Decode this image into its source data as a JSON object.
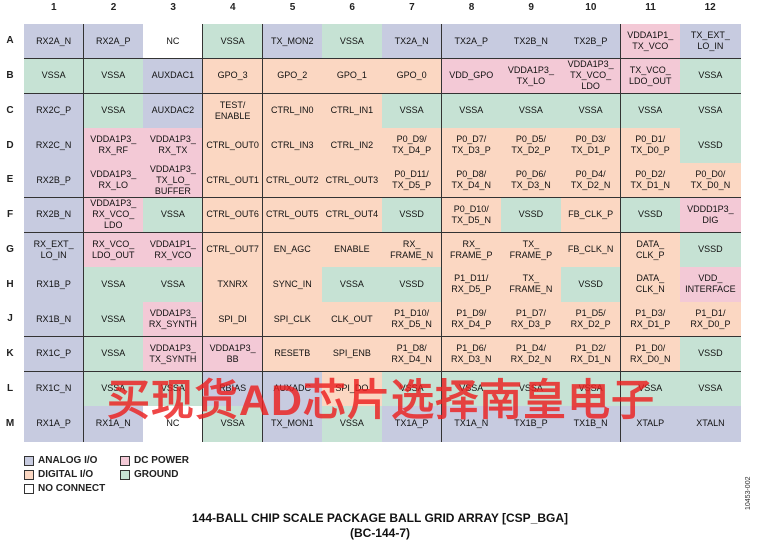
{
  "columns": [
    "1",
    "2",
    "3",
    "4",
    "5",
    "6",
    "7",
    "8",
    "9",
    "10",
    "11",
    "12"
  ],
  "rows": [
    {
      "label": "A",
      "cells": [
        {
          "text": "RX2A_N",
          "type": "A"
        },
        {
          "text": "RX2A_P",
          "type": "A"
        },
        {
          "text": "NC",
          "type": "N"
        },
        {
          "text": "VSSA",
          "type": "G"
        },
        {
          "text": "TX_MON2",
          "type": "A"
        },
        {
          "text": "VSSA",
          "type": "G"
        },
        {
          "text": "TX2A_N",
          "type": "A"
        },
        {
          "text": "TX2A_P",
          "type": "A"
        },
        {
          "text": "TX2B_N",
          "type": "A"
        },
        {
          "text": "TX2B_P",
          "type": "A"
        },
        {
          "text": "VDDA1P1_\nTX_VCO",
          "type": "P"
        },
        {
          "text": "TX_EXT_\nLO_IN",
          "type": "A"
        }
      ]
    },
    {
      "label": "B",
      "cells": [
        {
          "text": "VSSA",
          "type": "G"
        },
        {
          "text": "VSSA",
          "type": "G"
        },
        {
          "text": "AUXDAC1",
          "type": "A"
        },
        {
          "text": "GPO_3",
          "type": "D"
        },
        {
          "text": "GPO_2",
          "type": "D"
        },
        {
          "text": "GPO_1",
          "type": "D"
        },
        {
          "text": "GPO_0",
          "type": "D"
        },
        {
          "text": "VDD_GPO",
          "type": "P"
        },
        {
          "text": "VDDA1P3_\nTX_LO",
          "type": "P"
        },
        {
          "text": "VDDA1P3_\nTX_VCO_\nLDO",
          "type": "P"
        },
        {
          "text": "TX_VCO_\nLDO_OUT",
          "type": "P"
        },
        {
          "text": "VSSA",
          "type": "G"
        }
      ]
    },
    {
      "label": "C",
      "cells": [
        {
          "text": "RX2C_P",
          "type": "A"
        },
        {
          "text": "VSSA",
          "type": "G"
        },
        {
          "text": "AUXDAC2",
          "type": "A"
        },
        {
          "text": "TEST/\nENABLE",
          "type": "D"
        },
        {
          "text": "CTRL_IN0",
          "type": "D"
        },
        {
          "text": "CTRL_IN1",
          "type": "D"
        },
        {
          "text": "VSSA",
          "type": "G"
        },
        {
          "text": "VSSA",
          "type": "G"
        },
        {
          "text": "VSSA",
          "type": "G"
        },
        {
          "text": "VSSA",
          "type": "G"
        },
        {
          "text": "VSSA",
          "type": "G"
        },
        {
          "text": "VSSA",
          "type": "G"
        }
      ]
    },
    {
      "label": "D",
      "cells": [
        {
          "text": "RX2C_N",
          "type": "A"
        },
        {
          "text": "VDDA1P3_\nRX_RF",
          "type": "P"
        },
        {
          "text": "VDDA1P3_\nRX_TX",
          "type": "P"
        },
        {
          "text": "CTRL_OUT0",
          "type": "D"
        },
        {
          "text": "CTRL_IN3",
          "type": "D"
        },
        {
          "text": "CTRL_IN2",
          "type": "D"
        },
        {
          "text": "P0_D9/\nTX_D4_P",
          "type": "D"
        },
        {
          "text": "P0_D7/\nTX_D3_P",
          "type": "D"
        },
        {
          "text": "P0_D5/\nTX_D2_P",
          "type": "D"
        },
        {
          "text": "P0_D3/\nTX_D1_P",
          "type": "D"
        },
        {
          "text": "P0_D1/\nTX_D0_P",
          "type": "D"
        },
        {
          "text": "VSSD",
          "type": "G"
        }
      ]
    },
    {
      "label": "E",
      "cells": [
        {
          "text": "RX2B_P",
          "type": "A"
        },
        {
          "text": "VDDA1P3_\nRX_LO",
          "type": "P"
        },
        {
          "text": "VDDA1P3_\nTX_LO_\nBUFFER",
          "type": "P"
        },
        {
          "text": "CTRL_OUT1",
          "type": "D"
        },
        {
          "text": "CTRL_OUT2",
          "type": "D"
        },
        {
          "text": "CTRL_OUT3",
          "type": "D"
        },
        {
          "text": "P0_D11/\nTX_D5_P",
          "type": "D"
        },
        {
          "text": "P0_D8/\nTX_D4_N",
          "type": "D"
        },
        {
          "text": "P0_D6/\nTX_D3_N",
          "type": "D"
        },
        {
          "text": "P0_D4/\nTX_D2_N",
          "type": "D"
        },
        {
          "text": "P0_D2/\nTX_D1_N",
          "type": "D"
        },
        {
          "text": "P0_D0/\nTX_D0_N",
          "type": "D"
        }
      ]
    },
    {
      "label": "F",
      "cells": [
        {
          "text": "RX2B_N",
          "type": "A"
        },
        {
          "text": "VDDA1P3_\nRX_VCO_\nLDO",
          "type": "P"
        },
        {
          "text": "VSSA",
          "type": "G"
        },
        {
          "text": "CTRL_OUT6",
          "type": "D"
        },
        {
          "text": "CTRL_OUT5",
          "type": "D"
        },
        {
          "text": "CTRL_OUT4",
          "type": "D"
        },
        {
          "text": "VSSD",
          "type": "G"
        },
        {
          "text": "P0_D10/\nTX_D5_N",
          "type": "D"
        },
        {
          "text": "VSSD",
          "type": "G"
        },
        {
          "text": "FB_CLK_P",
          "type": "D"
        },
        {
          "text": "VSSD",
          "type": "G"
        },
        {
          "text": "VDDD1P3_\nDIG",
          "type": "P"
        }
      ]
    },
    {
      "label": "G",
      "cells": [
        {
          "text": "RX_EXT_\nLO_IN",
          "type": "A"
        },
        {
          "text": "RX_VCO_\nLDO_OUT",
          "type": "P"
        },
        {
          "text": "VDDA1P1_\nRX_VCO",
          "type": "P"
        },
        {
          "text": "CTRL_OUT7",
          "type": "D"
        },
        {
          "text": "EN_AGC",
          "type": "D"
        },
        {
          "text": "ENABLE",
          "type": "D"
        },
        {
          "text": "RX_\nFRAME_N",
          "type": "D"
        },
        {
          "text": "RX_\nFRAME_P",
          "type": "D"
        },
        {
          "text": "TX_\nFRAME_P",
          "type": "D"
        },
        {
          "text": "FB_CLK_N",
          "type": "D"
        },
        {
          "text": "DATA_\nCLK_P",
          "type": "D"
        },
        {
          "text": "VSSD",
          "type": "G"
        }
      ]
    },
    {
      "label": "H",
      "cells": [
        {
          "text": "RX1B_P",
          "type": "A"
        },
        {
          "text": "VSSA",
          "type": "G"
        },
        {
          "text": "VSSA",
          "type": "G"
        },
        {
          "text": "TXNRX",
          "type": "D"
        },
        {
          "text": "SYNC_IN",
          "type": "D"
        },
        {
          "text": "VSSA",
          "type": "G"
        },
        {
          "text": "VSSD",
          "type": "G"
        },
        {
          "text": "P1_D11/\nRX_D5_P",
          "type": "D"
        },
        {
          "text": "TX_\nFRAME_N",
          "type": "D"
        },
        {
          "text": "VSSD",
          "type": "G"
        },
        {
          "text": "DATA_\nCLK_N",
          "type": "D"
        },
        {
          "text": "VDD_\nINTERFACE",
          "type": "P"
        }
      ]
    },
    {
      "label": "J",
      "cells": [
        {
          "text": "RX1B_N",
          "type": "A"
        },
        {
          "text": "VSSA",
          "type": "G"
        },
        {
          "text": "VDDA1P3_\nRX_SYNTH",
          "type": "P"
        },
        {
          "text": "SPI_DI",
          "type": "D"
        },
        {
          "text": "SPI_CLK",
          "type": "D"
        },
        {
          "text": "CLK_OUT",
          "type": "D"
        },
        {
          "text": "P1_D10/\nRX_D5_N",
          "type": "D"
        },
        {
          "text": "P1_D9/\nRX_D4_P",
          "type": "D"
        },
        {
          "text": "P1_D7/\nRX_D3_P",
          "type": "D"
        },
        {
          "text": "P1_D5/\nRX_D2_P",
          "type": "D"
        },
        {
          "text": "P1_D3/\nRX_D1_P",
          "type": "D"
        },
        {
          "text": "P1_D1/\nRX_D0_P",
          "type": "D"
        }
      ]
    },
    {
      "label": "K",
      "cells": [
        {
          "text": "RX1C_P",
          "type": "A"
        },
        {
          "text": "VSSA",
          "type": "G"
        },
        {
          "text": "VDDA1P3_\nTX_SYNTH",
          "type": "P"
        },
        {
          "text": "VDDA1P3_\nBB",
          "type": "P"
        },
        {
          "text": "RESETB",
          "type": "D"
        },
        {
          "text": "SPI_ENB",
          "type": "D"
        },
        {
          "text": "P1_D8/\nRX_D4_N",
          "type": "D"
        },
        {
          "text": "P1_D6/\nRX_D3_N",
          "type": "D"
        },
        {
          "text": "P1_D4/\nRX_D2_N",
          "type": "D"
        },
        {
          "text": "P1_D2/\nRX_D1_N",
          "type": "D"
        },
        {
          "text": "P1_D0/\nRX_D0_N",
          "type": "D"
        },
        {
          "text": "VSSD",
          "type": "G"
        }
      ]
    },
    {
      "label": "L",
      "cells": [
        {
          "text": "RX1C_N",
          "type": "A"
        },
        {
          "text": "VSSA",
          "type": "G"
        },
        {
          "text": "VSSA",
          "type": "G"
        },
        {
          "text": "RBIAS",
          "type": "A"
        },
        {
          "text": "AUXADC",
          "type": "A"
        },
        {
          "text": "SPI_DO",
          "type": "D"
        },
        {
          "text": "VSSA",
          "type": "G"
        },
        {
          "text": "VSSA",
          "type": "G"
        },
        {
          "text": "VSSA",
          "type": "G"
        },
        {
          "text": "VSSA",
          "type": "G"
        },
        {
          "text": "VSSA",
          "type": "G"
        },
        {
          "text": "VSSA",
          "type": "G"
        }
      ]
    },
    {
      "label": "M",
      "cells": [
        {
          "text": "RX1A_P",
          "type": "A"
        },
        {
          "text": "RX1A_N",
          "type": "A"
        },
        {
          "text": "NC",
          "type": "N"
        },
        {
          "text": "VSSA",
          "type": "G"
        },
        {
          "text": "TX_MON1",
          "type": "A"
        },
        {
          "text": "VSSA",
          "type": "G"
        },
        {
          "text": "TX1A_P",
          "type": "A"
        },
        {
          "text": "TX1A_N",
          "type": "A"
        },
        {
          "text": "TX1B_P",
          "type": "A"
        },
        {
          "text": "TX1B_N",
          "type": "A"
        },
        {
          "text": "XTALP",
          "type": "A"
        },
        {
          "text": "XTALN",
          "type": "A"
        }
      ]
    }
  ],
  "legend": [
    {
      "label": "ANALOG I/O",
      "type": "A"
    },
    {
      "label": "DC POWER",
      "type": "P"
    },
    {
      "label": "DIGITAL I/O",
      "type": "D"
    },
    {
      "label": "GROUND",
      "type": "G"
    },
    {
      "label": "NO CONNECT",
      "type": "N"
    }
  ],
  "title_line1": "144-BALL CHIP SCALE PACKAGE BALL GRID ARRAY [CSP_BGA]",
  "title_line2": "(BC-144-7)",
  "figure_id": "10453-002",
  "watermark": "买现货AD芯片选择南皇电子"
}
